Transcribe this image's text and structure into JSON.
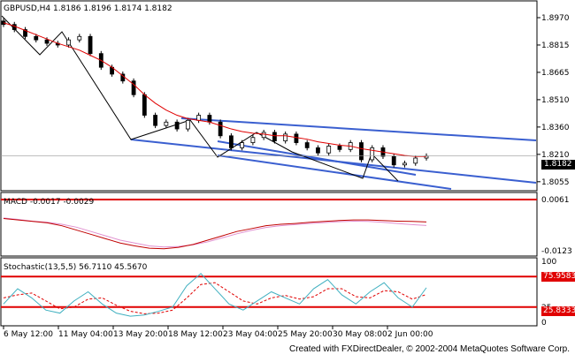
{
  "price_panel": {
    "header": "GBPUSD,H4  1.8186 1.8196 1.8174 1.8182",
    "current_price": "1.8182",
    "axis_ticks": [
      "1.8970",
      "1.8815",
      "1.8665",
      "1.8510",
      "1.8360",
      "1.8210",
      "1.8055"
    ]
  },
  "macd_panel": {
    "header": "MACD -0.0017 -0.0029",
    "axis_ticks": [
      "0.0061",
      "-0.0123"
    ],
    "top_label": "0.0061"
  },
  "stoch_panel": {
    "header": "Stochastic(13,5,5)  56.7110  45.5670",
    "axis_ticks": [
      "100",
      "75",
      "25",
      "0"
    ],
    "level_high": "75.9583",
    "level_low": "25.8333"
  },
  "time_axis": [
    "6 May 12:00",
    "11 May 04:00",
    "13 May 20:00",
    "18 May 12:00",
    "23 May 04:00",
    "25 May 20:00",
    "30 May 08:00",
    "2 Jun 00:00"
  ],
  "footer": "Created with FXDirectDealer, © 2002-2004 MetaQuotes Software Corp.",
  "colors": {
    "candle": "#000000",
    "ma": "#e00000",
    "channel": "#3a5fd0",
    "macd_main": "#c00000",
    "macd_signal": "#e090d0",
    "stoch_main": "#40b0c0",
    "stoch_signal": "#e00000",
    "level": "#e00000"
  },
  "chart_data": [
    {
      "type": "line",
      "name": "GBPUSD H4 close",
      "x_labels": [
        "6 May 12:00",
        "11 May 04:00",
        "13 May 20:00",
        "18 May 12:00",
        "23 May 04:00",
        "25 May 20:00",
        "30 May 08:00",
        "2 Jun 00:00"
      ],
      "ylim": [
        1.8,
        1.9
      ],
      "close": [
        1.895,
        1.892,
        1.888,
        1.886,
        1.884,
        1.883,
        1.886,
        1.888,
        1.878,
        1.87,
        1.866,
        1.862,
        1.854,
        1.842,
        1.836,
        1.838,
        1.834,
        1.839,
        1.842,
        1.838,
        1.83,
        1.823,
        1.826,
        1.829,
        1.832,
        1.827,
        1.831,
        1.826,
        1.823,
        1.82,
        1.824,
        1.822,
        1.826,
        1.816,
        1.823,
        1.818,
        1.813,
        1.814,
        1.817,
        1.8182
      ],
      "ma": [
        1.896,
        1.894,
        1.8915,
        1.889,
        1.8865,
        1.884,
        1.882,
        1.88,
        1.877,
        1.874,
        1.87,
        1.865,
        1.86,
        1.854,
        1.849,
        1.845,
        1.842,
        1.84,
        1.839,
        1.838,
        1.836,
        1.834,
        1.8325,
        1.8315,
        1.831,
        1.83,
        1.83,
        1.829,
        1.828,
        1.8265,
        1.8255,
        1.8245,
        1.824,
        1.8225,
        1.8215,
        1.8205,
        1.8195,
        1.8185,
        1.818,
        1.818
      ]
    },
    {
      "type": "line",
      "name": "MACD",
      "ylim": [
        -0.0123,
        0.0061
      ],
      "main": [
        -0.0005,
        -0.001,
        -0.0015,
        -0.002,
        -0.003,
        -0.0045,
        -0.006,
        -0.0075,
        -0.009,
        -0.01,
        -0.0108,
        -0.011,
        -0.0105,
        -0.0095,
        -0.008,
        -0.0065,
        -0.005,
        -0.004,
        -0.003,
        -0.0025,
        -0.0022,
        -0.0018,
        -0.0015,
        -0.0012,
        -0.001,
        -0.001,
        -0.0012,
        -0.0014,
        -0.0015,
        -0.0017
      ],
      "signal": [
        -0.0003,
        -0.0008,
        -0.0014,
        -0.0018,
        -0.0025,
        -0.0035,
        -0.005,
        -0.0065,
        -0.008,
        -0.009,
        -0.01,
        -0.0104,
        -0.0102,
        -0.0096,
        -0.0086,
        -0.0072,
        -0.0058,
        -0.0046,
        -0.0036,
        -0.003,
        -0.0026,
        -0.0022,
        -0.0019,
        -0.0016,
        -0.0014,
        -0.0015,
        -0.0018,
        -0.0022,
        -0.0026,
        -0.0029
      ]
    },
    {
      "type": "line",
      "name": "Stochastic(13,5,5)",
      "ylim": [
        0,
        100
      ],
      "main": [
        30,
        55,
        40,
        20,
        15,
        35,
        50,
        30,
        15,
        10,
        12,
        18,
        25,
        60,
        80,
        55,
        30,
        20,
        35,
        50,
        40,
        30,
        55,
        70,
        45,
        30,
        50,
        65,
        40,
        25,
        56.711
      ],
      "signal": [
        40,
        45,
        48,
        35,
        22,
        25,
        38,
        40,
        28,
        18,
        14,
        15,
        20,
        40,
        62,
        65,
        50,
        35,
        30,
        40,
        44,
        38,
        42,
        55,
        55,
        42,
        40,
        52,
        50,
        38,
        45.567
      ]
    }
  ]
}
